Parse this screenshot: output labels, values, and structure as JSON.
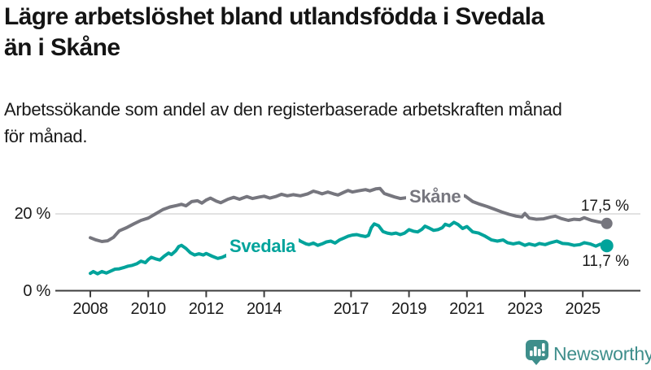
{
  "title": "Lägre arbetslöshet bland utlandsfödda i Svedala\nän i Skåne",
  "subtitle": "Arbetssökande som andel av den registerbaserade arbetskraften månad\nför månad.",
  "branding": {
    "name": "Newsworthy",
    "color": "#3e8e8b",
    "icon": "bar-chart-speech-bubble-icon"
  },
  "chart_data": {
    "type": "line",
    "title": "Lägre arbetslöshet bland utlandsfödda i Svedala än i Skåne",
    "subtitle": "Arbetssökande som andel av den registerbaserade arbetskraften månad för månad.",
    "unit": "%",
    "xlim": [
      2008,
      2025.83
    ],
    "ylim": [
      0,
      28
    ],
    "grid": "horizontal line at 20 % only",
    "legend_position": "inline labels on lines",
    "x_ticks": [
      2008,
      2010,
      2012,
      2014,
      2017,
      2019,
      2021,
      2023,
      2025
    ],
    "y_ticks": [
      {
        "value": 0,
        "label": "0 %"
      },
      {
        "value": 20,
        "label": "20 %"
      }
    ],
    "series": [
      {
        "name": "Skåne",
        "color": "#76767e",
        "end_label": "17,5 %",
        "final_value": 17.5,
        "dot_radius": 7,
        "points": [
          [
            2008.0,
            13.8
          ],
          [
            2008.2,
            13.2
          ],
          [
            2008.4,
            12.8
          ],
          [
            2008.6,
            13.0
          ],
          [
            2008.8,
            13.9
          ],
          [
            2009.0,
            15.6
          ],
          [
            2009.25,
            16.4
          ],
          [
            2009.5,
            17.4
          ],
          [
            2009.75,
            18.3
          ],
          [
            2010.0,
            18.9
          ],
          [
            2010.25,
            20.0
          ],
          [
            2010.5,
            21.1
          ],
          [
            2010.75,
            21.8
          ],
          [
            2011.0,
            22.2
          ],
          [
            2011.15,
            22.5
          ],
          [
            2011.3,
            22.1
          ],
          [
            2011.5,
            23.2
          ],
          [
            2011.7,
            23.4
          ],
          [
            2011.85,
            22.8
          ],
          [
            2012.0,
            23.6
          ],
          [
            2012.15,
            24.1
          ],
          [
            2012.35,
            23.3
          ],
          [
            2012.5,
            22.9
          ],
          [
            2012.75,
            23.8
          ],
          [
            2012.95,
            24.3
          ],
          [
            2013.15,
            23.8
          ],
          [
            2013.4,
            24.5
          ],
          [
            2013.6,
            24.0
          ],
          [
            2013.85,
            24.4
          ],
          [
            2014.0,
            24.6
          ],
          [
            2014.2,
            24.1
          ],
          [
            2014.4,
            24.5
          ],
          [
            2014.6,
            25.1
          ],
          [
            2014.8,
            24.7
          ],
          [
            2015.0,
            25.0
          ],
          [
            2015.25,
            24.7
          ],
          [
            2015.5,
            25.2
          ],
          [
            2015.7,
            25.9
          ],
          [
            2015.85,
            25.6
          ],
          [
            2016.0,
            25.2
          ],
          [
            2016.2,
            25.7
          ],
          [
            2016.4,
            25.2
          ],
          [
            2016.55,
            24.9
          ],
          [
            2016.75,
            25.6
          ],
          [
            2016.9,
            26.1
          ],
          [
            2017.05,
            25.7
          ],
          [
            2017.25,
            26.0
          ],
          [
            2017.5,
            26.3
          ],
          [
            2017.65,
            26.0
          ],
          [
            2017.85,
            26.5
          ],
          [
            2018.0,
            26.6
          ],
          [
            2018.15,
            25.3
          ],
          [
            2018.3,
            24.9
          ],
          [
            2018.5,
            24.4
          ],
          [
            2018.7,
            24.0
          ],
          [
            2018.9,
            24.2
          ],
          [
            2019.1,
            24.4
          ],
          [
            2019.35,
            24.1
          ],
          [
            2019.6,
            24.3
          ],
          [
            2019.85,
            24.5
          ],
          [
            2020.1,
            24.8
          ],
          [
            2020.35,
            25.2
          ],
          [
            2020.55,
            25.5
          ],
          [
            2020.75,
            25.1
          ],
          [
            2020.95,
            24.6
          ],
          [
            2021.2,
            23.2
          ],
          [
            2021.45,
            22.5
          ],
          [
            2021.7,
            21.9
          ],
          [
            2021.95,
            21.2
          ],
          [
            2022.2,
            20.5
          ],
          [
            2022.45,
            19.9
          ],
          [
            2022.7,
            19.4
          ],
          [
            2022.9,
            19.2
          ],
          [
            2023.0,
            20.1
          ],
          [
            2023.15,
            18.9
          ],
          [
            2023.4,
            18.6
          ],
          [
            2023.65,
            18.7
          ],
          [
            2023.9,
            19.2
          ],
          [
            2024.05,
            19.4
          ],
          [
            2024.25,
            18.8
          ],
          [
            2024.5,
            18.3
          ],
          [
            2024.7,
            18.6
          ],
          [
            2024.9,
            18.5
          ],
          [
            2025.05,
            19.0
          ],
          [
            2025.3,
            18.3
          ],
          [
            2025.55,
            17.9
          ],
          [
            2025.83,
            17.5
          ]
        ]
      },
      {
        "name": "Svedala",
        "color": "#00a39b",
        "end_label": "11,7 %",
        "final_value": 11.7,
        "dot_radius": 8,
        "points": [
          [
            2008.0,
            4.5
          ],
          [
            2008.1,
            5.0
          ],
          [
            2008.25,
            4.4
          ],
          [
            2008.4,
            5.0
          ],
          [
            2008.55,
            4.6
          ],
          [
            2008.7,
            5.1
          ],
          [
            2008.85,
            5.6
          ],
          [
            2009.0,
            5.7
          ],
          [
            2009.15,
            6.0
          ],
          [
            2009.3,
            6.4
          ],
          [
            2009.45,
            6.6
          ],
          [
            2009.6,
            7.0
          ],
          [
            2009.75,
            7.7
          ],
          [
            2009.9,
            7.3
          ],
          [
            2010.0,
            8.1
          ],
          [
            2010.1,
            8.7
          ],
          [
            2010.25,
            8.3
          ],
          [
            2010.4,
            8.0
          ],
          [
            2010.55,
            9.0
          ],
          [
            2010.7,
            9.8
          ],
          [
            2010.8,
            9.4
          ],
          [
            2010.95,
            10.4
          ],
          [
            2011.05,
            11.5
          ],
          [
            2011.15,
            11.8
          ],
          [
            2011.3,
            11.0
          ],
          [
            2011.45,
            9.9
          ],
          [
            2011.6,
            9.3
          ],
          [
            2011.75,
            9.6
          ],
          [
            2011.9,
            9.3
          ],
          [
            2012.0,
            9.7
          ],
          [
            2012.2,
            9.0
          ],
          [
            2012.4,
            8.4
          ],
          [
            2012.55,
            8.7
          ],
          [
            2012.7,
            9.2
          ],
          [
            2012.85,
            9.8
          ],
          [
            2013.0,
            10.2
          ],
          [
            2013.25,
            10.6
          ],
          [
            2013.5,
            11.0
          ],
          [
            2013.75,
            11.3
          ],
          [
            2014.0,
            11.7
          ],
          [
            2014.25,
            12.1
          ],
          [
            2014.5,
            12.6
          ],
          [
            2014.75,
            13.1
          ],
          [
            2015.0,
            13.5
          ],
          [
            2015.1,
            13.6
          ],
          [
            2015.25,
            12.9
          ],
          [
            2015.45,
            12.2
          ],
          [
            2015.55,
            12.0
          ],
          [
            2015.7,
            12.4
          ],
          [
            2015.85,
            11.8
          ],
          [
            2016.0,
            12.2
          ],
          [
            2016.15,
            12.7
          ],
          [
            2016.3,
            12.9
          ],
          [
            2016.45,
            12.4
          ],
          [
            2016.6,
            13.2
          ],
          [
            2016.75,
            13.7
          ],
          [
            2016.9,
            14.2
          ],
          [
            2017.05,
            14.5
          ],
          [
            2017.2,
            14.6
          ],
          [
            2017.35,
            14.3
          ],
          [
            2017.5,
            14.1
          ],
          [
            2017.6,
            14.4
          ],
          [
            2017.7,
            16.4
          ],
          [
            2017.8,
            17.4
          ],
          [
            2017.95,
            16.9
          ],
          [
            2018.1,
            15.4
          ],
          [
            2018.25,
            15.0
          ],
          [
            2018.4,
            14.8
          ],
          [
            2018.55,
            15.0
          ],
          [
            2018.7,
            14.6
          ],
          [
            2018.85,
            15.0
          ],
          [
            2019.0,
            15.9
          ],
          [
            2019.15,
            15.5
          ],
          [
            2019.3,
            15.3
          ],
          [
            2019.45,
            16.0
          ],
          [
            2019.55,
            16.8
          ],
          [
            2019.7,
            16.3
          ],
          [
            2019.85,
            15.7
          ],
          [
            2020.0,
            15.9
          ],
          [
            2020.15,
            16.4
          ],
          [
            2020.25,
            17.3
          ],
          [
            2020.4,
            16.9
          ],
          [
            2020.55,
            17.8
          ],
          [
            2020.7,
            17.2
          ],
          [
            2020.85,
            16.2
          ],
          [
            2021.0,
            16.7
          ],
          [
            2021.2,
            15.3
          ],
          [
            2021.4,
            15.0
          ],
          [
            2021.6,
            14.3
          ],
          [
            2021.85,
            13.2
          ],
          [
            2022.05,
            12.9
          ],
          [
            2022.25,
            13.2
          ],
          [
            2022.4,
            12.5
          ],
          [
            2022.6,
            12.2
          ],
          [
            2022.8,
            12.5
          ],
          [
            2023.0,
            11.8
          ],
          [
            2023.15,
            12.2
          ],
          [
            2023.35,
            11.8
          ],
          [
            2023.5,
            12.3
          ],
          [
            2023.7,
            12.0
          ],
          [
            2023.9,
            12.5
          ],
          [
            2024.1,
            12.9
          ],
          [
            2024.3,
            12.3
          ],
          [
            2024.5,
            12.2
          ],
          [
            2024.7,
            11.8
          ],
          [
            2024.9,
            12.0
          ],
          [
            2025.05,
            12.5
          ],
          [
            2025.25,
            12.2
          ],
          [
            2025.45,
            11.6
          ],
          [
            2025.6,
            12.1
          ],
          [
            2025.83,
            11.7
          ]
        ]
      }
    ]
  }
}
